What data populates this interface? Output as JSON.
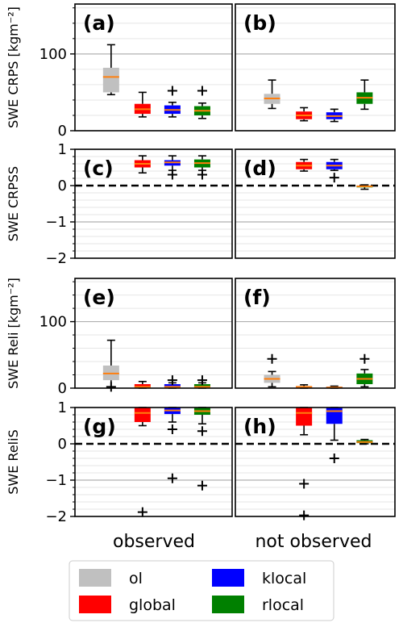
{
  "figure": {
    "x_categories": [
      "observed",
      "not observed"
    ],
    "legend": [
      {
        "name": "ol",
        "color": "#c0c0c0"
      },
      {
        "name": "global",
        "color": "#ff0000"
      },
      {
        "name": "klocal",
        "color": "#0000ff"
      },
      {
        "name": "rlocal",
        "color": "#008000"
      }
    ],
    "median_color": "#ff7f0e"
  },
  "chart_data": [
    {
      "type": "box",
      "row": 0,
      "ylabel": "SWE CRPS [kgm⁻²]",
      "ylim": [
        0,
        165
      ],
      "yticks": [
        0,
        100
      ],
      "yticklabels": [
        "0",
        "100"
      ],
      "major_grid": [
        100
      ],
      "minor_grid": [
        20,
        40,
        60,
        80,
        120,
        140,
        160
      ],
      "zero_line": false,
      "panels": [
        {
          "label": "(a)",
          "category": "observed",
          "boxes": [
            {
              "series": "ol",
              "whislo": 47,
              "q1": 50,
              "med": 70,
              "q3": 82,
              "whishi": 112,
              "fliers": []
            },
            {
              "series": "global",
              "whislo": 18,
              "q1": 22,
              "med": 28,
              "q3": 35,
              "whishi": 50,
              "fliers": []
            },
            {
              "series": "klocal",
              "whislo": 18,
              "q1": 22,
              "med": 27,
              "q3": 33,
              "whishi": 37,
              "fliers": [
                52
              ]
            },
            {
              "series": "rlocal",
              "whislo": 16,
              "q1": 20,
              "med": 26,
              "q3": 32,
              "whishi": 36,
              "fliers": [
                52
              ]
            }
          ]
        },
        {
          "label": "(b)",
          "category": "not observed",
          "boxes": [
            {
              "series": "ol",
              "whislo": 29,
              "q1": 35,
              "med": 42,
              "q3": 48,
              "whishi": 66,
              "fliers": []
            },
            {
              "series": "global",
              "whislo": 13,
              "q1": 15,
              "med": 20,
              "q3": 25,
              "whishi": 30,
              "fliers": []
            },
            {
              "series": "klocal",
              "whislo": 12,
              "q1": 15,
              "med": 19,
              "q3": 24,
              "whishi": 28,
              "fliers": []
            },
            {
              "series": "rlocal",
              "whislo": 28,
              "q1": 35,
              "med": 43,
              "q3": 50,
              "whishi": 66,
              "fliers": []
            }
          ]
        }
      ]
    },
    {
      "type": "box",
      "row": 1,
      "ylabel": "SWE CRPSS",
      "ylim": [
        -2,
        1
      ],
      "yticks": [
        -2,
        -1,
        0,
        1
      ],
      "yticklabels": [
        "−2",
        "−1",
        "0",
        "1"
      ],
      "major_grid": [
        -1
      ],
      "minor_grid": [
        -1.8,
        -1.6,
        -1.4,
        -1.2,
        -0.8,
        -0.6,
        -0.4,
        -0.2,
        0.2,
        0.4,
        0.6,
        0.8
      ],
      "zero_line": true,
      "panels": [
        {
          "label": "(c)",
          "category": "observed",
          "boxes": [
            {
              "series": "global",
              "whislo": 0.35,
              "q1": 0.5,
              "med": 0.6,
              "q3": 0.7,
              "whishi": 0.82,
              "fliers": []
            },
            {
              "series": "klocal",
              "whislo": 0.42,
              "q1": 0.55,
              "med": 0.64,
              "q3": 0.7,
              "whishi": 0.82,
              "fliers": [
                0.3
              ]
            },
            {
              "series": "rlocal",
              "whislo": 0.42,
              "q1": 0.5,
              "med": 0.62,
              "q3": 0.72,
              "whishi": 0.82,
              "fliers": [
                0.3
              ]
            }
          ]
        },
        {
          "label": "(d)",
          "category": "not observed",
          "boxes": [
            {
              "series": "global",
              "whislo": 0.4,
              "q1": 0.45,
              "med": 0.55,
              "q3": 0.65,
              "whishi": 0.72,
              "fliers": []
            },
            {
              "series": "klocal",
              "whislo": 0.42,
              "q1": 0.45,
              "med": 0.55,
              "q3": 0.65,
              "whishi": 0.72,
              "fliers": [
                0.22
              ]
            },
            {
              "series": "rlocal",
              "whislo": -0.1,
              "q1": -0.05,
              "med": -0.02,
              "q3": 0.0,
              "whishi": 0.02,
              "fliers": []
            }
          ]
        }
      ]
    },
    {
      "type": "box",
      "row": 2,
      "ylabel": "SWE Reli [kgm⁻²]",
      "ylim": [
        0,
        165
      ],
      "yticks": [
        0,
        100
      ],
      "yticklabels": [
        "0",
        "100"
      ],
      "major_grid": [
        100
      ],
      "minor_grid": [
        20,
        40,
        60,
        80,
        120,
        140,
        160
      ],
      "zero_line": false,
      "panels": [
        {
          "label": "(e)",
          "category": "observed",
          "boxes": [
            {
              "series": "ol",
              "whislo": 2,
              "q1": 12,
              "med": 22,
              "q3": 34,
              "whishi": 72,
              "fliers": [
                2
              ]
            },
            {
              "series": "global",
              "whislo": 0,
              "q1": 1,
              "med": 2,
              "q3": 6,
              "whishi": 10,
              "fliers": []
            },
            {
              "series": "klocal",
              "whislo": 0,
              "q1": 1,
              "med": 2,
              "q3": 6,
              "whishi": 8,
              "fliers": [
                12
              ]
            },
            {
              "series": "rlocal",
              "whislo": 0,
              "q1": 1,
              "med": 2,
              "q3": 6,
              "whishi": 8,
              "fliers": [
                12
              ]
            }
          ]
        },
        {
          "label": "(f)",
          "category": "not observed",
          "boxes": [
            {
              "series": "ol",
              "whislo": 2,
              "q1": 8,
              "med": 14,
              "q3": 20,
              "whishi": 25,
              "fliers": [
                44
              ]
            },
            {
              "series": "global",
              "whislo": 0,
              "q1": 1,
              "med": 2,
              "q3": 3,
              "whishi": 5,
              "fliers": []
            },
            {
              "series": "klocal",
              "whislo": 0,
              "q1": 0.5,
              "med": 1,
              "q3": 2,
              "whishi": 3,
              "fliers": []
            },
            {
              "series": "rlocal",
              "whislo": 2,
              "q1": 6,
              "med": 14,
              "q3": 22,
              "whishi": 28,
              "fliers": [
                44
              ]
            }
          ]
        }
      ]
    },
    {
      "type": "box",
      "row": 3,
      "ylabel": "SWE ReliS",
      "ylim": [
        -2,
        1
      ],
      "yticks": [
        -2,
        -1,
        0,
        1
      ],
      "yticklabels": [
        "−2",
        "−1",
        "0",
        "1"
      ],
      "major_grid": [
        -1
      ],
      "minor_grid": [
        -1.8,
        -1.6,
        -1.4,
        -1.2,
        -0.8,
        -0.6,
        -0.4,
        -0.2,
        0.2,
        0.4,
        0.6,
        0.8
      ],
      "zero_line": true,
      "panels": [
        {
          "label": "(g)",
          "category": "observed",
          "boxes": [
            {
              "series": "global",
              "whislo": 0.5,
              "q1": 0.6,
              "med": 0.85,
              "q3": 1.0,
              "whishi": 1.0,
              "fliers": [
                -1.88
              ]
            },
            {
              "series": "klocal",
              "whislo": 0.6,
              "q1": 0.82,
              "med": 0.92,
              "q3": 1.0,
              "whishi": 1.0,
              "fliers": [
                0.4,
                -0.95
              ]
            },
            {
              "series": "rlocal",
              "whislo": 0.55,
              "q1": 0.8,
              "med": 0.9,
              "q3": 1.0,
              "whishi": 1.0,
              "fliers": [
                0.35,
                -1.15
              ]
            }
          ]
        },
        {
          "label": "(h)",
          "category": "not observed",
          "boxes": [
            {
              "series": "global",
              "whislo": 0.25,
              "q1": 0.5,
              "med": 0.85,
              "q3": 1.0,
              "whishi": 1.0,
              "fliers": [
                -1.1,
                -1.97
              ]
            },
            {
              "series": "klocal",
              "whislo": 0.1,
              "q1": 0.55,
              "med": 0.9,
              "q3": 1.0,
              "whishi": 1.0,
              "fliers": [
                -0.4
              ]
            },
            {
              "series": "rlocal",
              "whislo": 0.0,
              "q1": 0.02,
              "med": 0.05,
              "q3": 0.1,
              "whishi": 0.12,
              "fliers": []
            }
          ]
        }
      ]
    }
  ]
}
